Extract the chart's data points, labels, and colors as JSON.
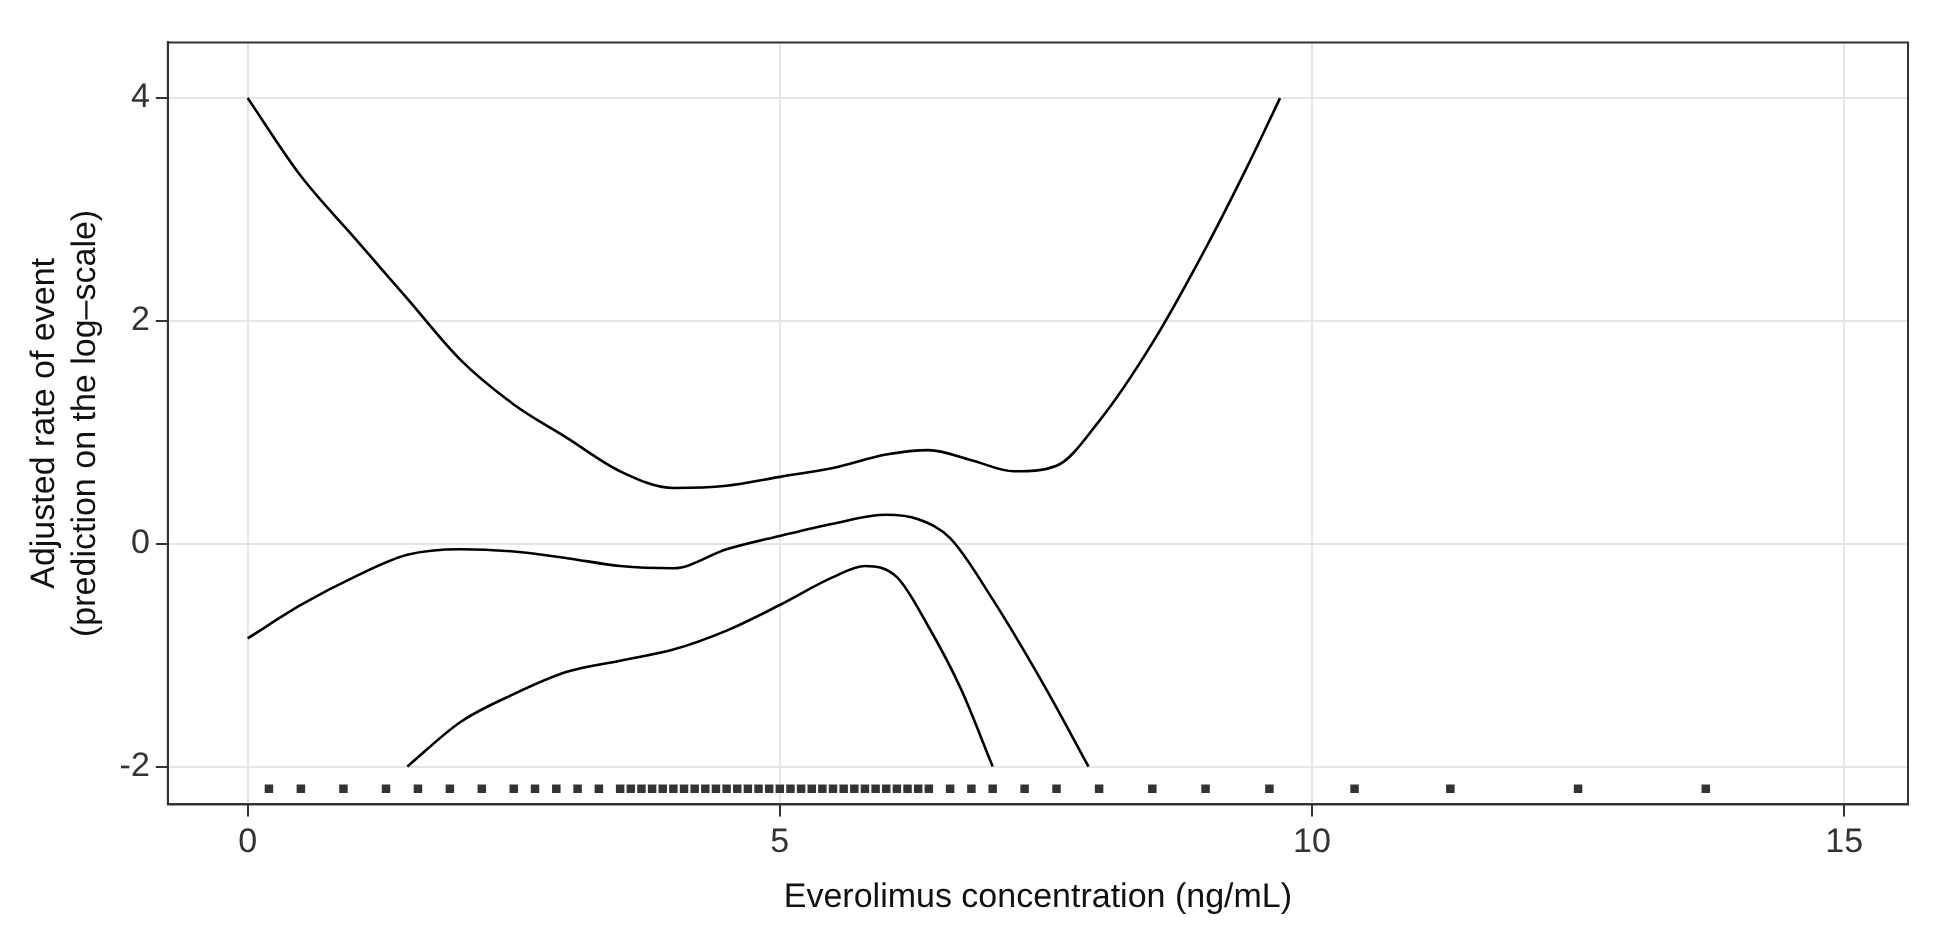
{
  "chart_data": {
    "type": "line",
    "xlabel": "Everolimus concentration (ng/mL)",
    "ylabel": "Adjusted rate of event\n(prediction on the log–scale)",
    "xlim": [
      -0.75,
      15.6
    ],
    "ylim": [
      -2.34,
      4.5
    ],
    "xticks": [
      0,
      5,
      10,
      15
    ],
    "yticks": [
      -2,
      0,
      2,
      4
    ],
    "grid": true,
    "legend": false,
    "line_style": "solid",
    "series": [
      {
        "color": "#000000",
        "x": [
          0,
          0.5,
          1,
          1.5,
          2,
          2.5,
          3,
          3.5,
          4,
          4.5,
          5,
          5.5,
          6,
          6.4,
          6.8,
          7.2,
          7.6,
          8,
          8.5,
          9,
          9.4,
          9.7
        ],
        "values": [
          4,
          3.3,
          2.75,
          2.2,
          1.65,
          1.25,
          0.95,
          0.65,
          0.5,
          0.52,
          0.6,
          0.68,
          0.8,
          0.84,
          0.75,
          0.65,
          0.7,
          1.1,
          1.8,
          2.65,
          3.4,
          4
        ]
      },
      {
        "color": "#000000",
        "x": [
          0,
          0.5,
          1,
          1.5,
          2,
          2.5,
          3,
          3.5,
          4,
          4.5,
          5,
          5.5,
          6,
          6.3,
          6.6,
          7,
          7.5,
          7.9
        ],
        "values": [
          -0.85,
          -0.55,
          -0.3,
          -0.1,
          -0.05,
          -0.07,
          -0.13,
          -0.2,
          -0.22,
          -0.05,
          0.07,
          0.18,
          0.26,
          0.22,
          0.05,
          -0.5,
          -1.3,
          -2
        ]
      },
      {
        "color": "#000000",
        "x": [
          1.5,
          2,
          2.5,
          3,
          3.5,
          4,
          4.5,
          5,
          5.5,
          5.8,
          6.1,
          6.4,
          6.7,
          7
        ],
        "values": [
          -2,
          -1.6,
          -1.35,
          -1.15,
          -1.05,
          -0.95,
          -0.78,
          -0.55,
          -0.3,
          -0.2,
          -0.3,
          -0.75,
          -1.3,
          -2
        ]
      },
      {
        "type": "scatter",
        "color": "#333333",
        "x": [
          0.2,
          0.5,
          0.9,
          1.3,
          1.6,
          1.9,
          2.2,
          2.5,
          2.7,
          2.9,
          3.1,
          3.3,
          3.5,
          3.6,
          3.7,
          3.8,
          3.9,
          4,
          4.1,
          4.2,
          4.3,
          4.4,
          4.5,
          4.6,
          4.7,
          4.8,
          4.9,
          5,
          5.1,
          5.2,
          5.3,
          5.4,
          5.5,
          5.6,
          5.7,
          5.8,
          5.9,
          6,
          6.1,
          6.2,
          6.3,
          6.4,
          6.6,
          6.8,
          7,
          7.3,
          7.6,
          8,
          8.5,
          9,
          9.6,
          10.4,
          11.3,
          12.5,
          13.7
        ],
        "values": [
          -2.2,
          -2.2,
          -2.2,
          -2.2,
          -2.2,
          -2.2,
          -2.2,
          -2.2,
          -2.2,
          -2.2,
          -2.2,
          -2.2,
          -2.2,
          -2.2,
          -2.2,
          -2.2,
          -2.2,
          -2.2,
          -2.2,
          -2.2,
          -2.2,
          -2.2,
          -2.2,
          -2.2,
          -2.2,
          -2.2,
          -2.2,
          -2.2,
          -2.2,
          -2.2,
          -2.2,
          -2.2,
          -2.2,
          -2.2,
          -2.2,
          -2.2,
          -2.2,
          -2.2,
          -2.2,
          -2.2,
          -2.2,
          -2.2,
          -2.2,
          -2.2,
          -2.2,
          -2.2,
          -2.2,
          -2.2,
          -2.2,
          -2.2,
          -2.2,
          -2.2,
          -2.2,
          -2.2,
          -2.2
        ]
      }
    ]
  }
}
